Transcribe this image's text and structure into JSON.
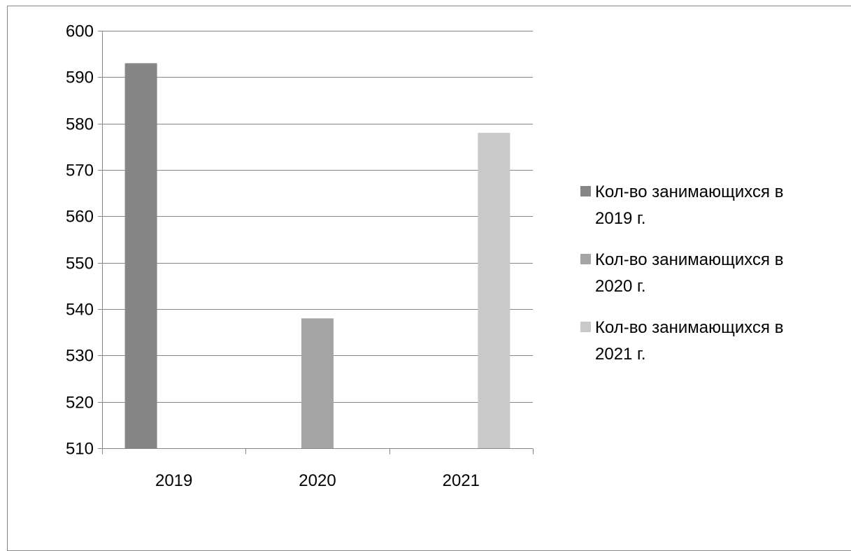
{
  "chart_data": {
    "type": "bar",
    "categories": [
      "2019",
      "2020",
      "2021"
    ],
    "series": [
      {
        "name": "Кол-во занимающихся в 2019 г.",
        "name_lines": [
          "Кол-во занимающихся в",
          "2019 г."
        ],
        "values": [
          593,
          null,
          null
        ],
        "color": "#868686"
      },
      {
        "name": "Кол-во занимающихся в 2020 г.",
        "name_lines": [
          "Кол-во занимающихся в",
          "2020 г."
        ],
        "values": [
          null,
          538,
          null
        ],
        "color": "#a5a5a5"
      },
      {
        "name": "Кол-во занимающихся в 2021 г.",
        "name_lines": [
          "Кол-во занимающихся в",
          "2021 г."
        ],
        "values": [
          null,
          null,
          578
        ],
        "color": "#c9c9c9"
      }
    ],
    "ylim": [
      510,
      600
    ],
    "yticks": [
      510,
      520,
      530,
      540,
      550,
      560,
      570,
      580,
      590,
      600
    ],
    "grid": true,
    "legend": "right"
  },
  "colors": {
    "grid": "#868686",
    "axis": "#868686",
    "frame": "#888888"
  }
}
